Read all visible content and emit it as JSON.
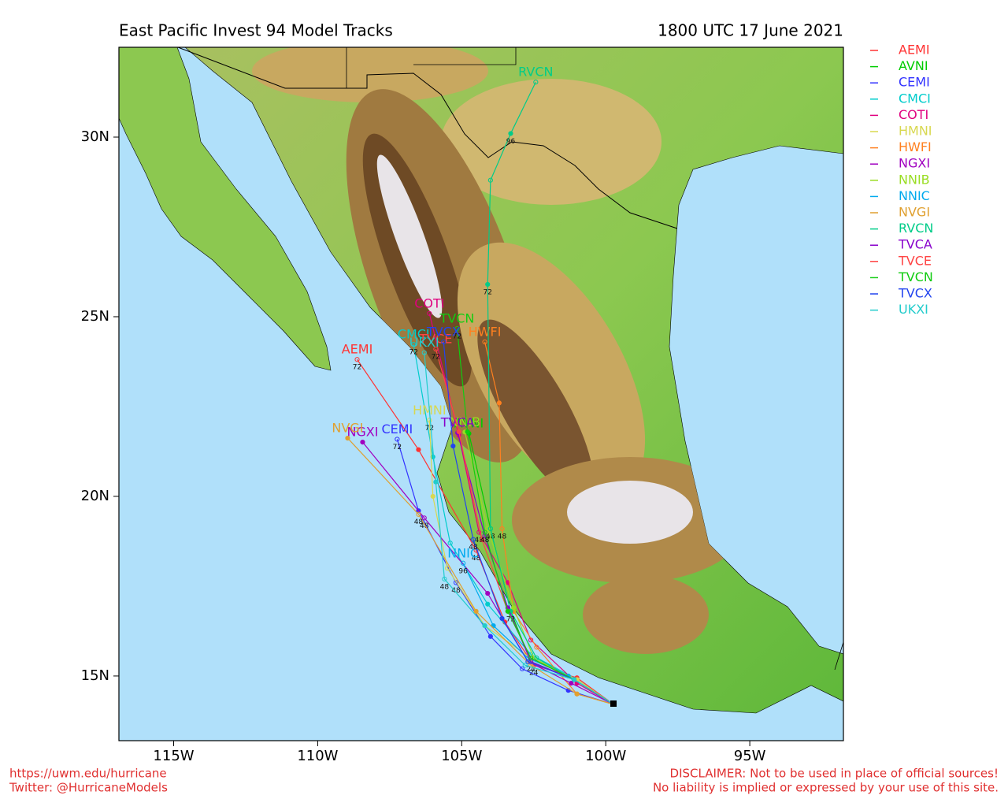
{
  "chart_data": {
    "type": "track_map",
    "title": "East Pacific Invest 94 Model Tracks",
    "subtitle": "1800 UTC 17 June 2021",
    "xlim": [
      -116.9,
      -91.75
    ],
    "ylim": [
      13.2,
      32.5
    ],
    "xticks": [
      {
        "value": -115,
        "label": "115W"
      },
      {
        "value": -110,
        "label": "110W"
      },
      {
        "value": -105,
        "label": "105W"
      },
      {
        "value": -100,
        "label": "100W"
      },
      {
        "value": -95,
        "label": "95W"
      }
    ],
    "yticks": [
      {
        "value": 15,
        "label": "15N"
      },
      {
        "value": 20,
        "label": "20N"
      },
      {
        "value": 25,
        "label": "25N"
      },
      {
        "value": 30,
        "label": "30N"
      }
    ],
    "series": [
      {
        "name": "AEMI",
        "color": "#ff3333",
        "points": [
          [
            -99.73,
            14.21
          ],
          [
            -101.0,
            14.95
          ],
          [
            -102.5,
            15.3
          ],
          [
            -103.5,
            16.5
          ],
          [
            -104.5,
            18.5
          ],
          [
            -106.5,
            21.3
          ],
          [
            -108.63,
            23.81
          ]
        ],
        "hours": [
          null,
          null,
          24,
          null,
          48,
          null,
          72
        ]
      },
      {
        "name": "AVNI",
        "color": "#00cc00",
        "points": [
          [
            -99.73,
            14.21
          ],
          [
            -101.1,
            14.9
          ],
          [
            -102.6,
            15.4
          ],
          [
            -103.3,
            16.8
          ],
          [
            -104.0,
            19.1
          ],
          [
            -104.75,
            21.75
          ]
        ],
        "hours": [
          null,
          null,
          24,
          null,
          48,
          null
        ]
      },
      {
        "name": "CEMI",
        "color": "#3333ff",
        "points": [
          [
            -99.73,
            14.21
          ],
          [
            -101.3,
            14.6
          ],
          [
            -102.9,
            15.2
          ],
          [
            -104.0,
            16.1
          ],
          [
            -105.2,
            17.6
          ],
          [
            -106.5,
            19.6
          ],
          [
            -107.24,
            21.59
          ]
        ],
        "hours": [
          null,
          null,
          null,
          null,
          48,
          null,
          72
        ]
      },
      {
        "name": "CMCI",
        "color": "#00cccc",
        "points": [
          [
            -99.73,
            14.21
          ],
          [
            -101.0,
            14.9
          ],
          [
            -102.6,
            15.6
          ],
          [
            -104.1,
            17.0
          ],
          [
            -105.4,
            18.7
          ],
          [
            -106.0,
            21.1
          ],
          [
            -106.67,
            24.23
          ]
        ],
        "hours": [
          null,
          null,
          null,
          null,
          null,
          null,
          72
        ]
      },
      {
        "name": "COTI",
        "color": "#e0007f",
        "points": [
          [
            -99.73,
            14.21
          ],
          [
            -101.0,
            14.8
          ],
          [
            -102.6,
            16.0
          ],
          [
            -103.4,
            17.6
          ],
          [
            -104.4,
            19.0
          ],
          [
            -105.1,
            21.7
          ],
          [
            -106.12,
            25.09
          ]
        ],
        "hours": [
          null,
          null,
          null,
          null,
          48,
          null,
          null
        ]
      },
      {
        "name": "HMNI",
        "color": "#d8d850",
        "points": [
          [
            -99.73,
            14.21
          ],
          [
            -101.0,
            14.9
          ],
          [
            -102.6,
            15.5
          ],
          [
            -104.2,
            16.4
          ],
          [
            -105.5,
            18.0
          ],
          [
            -106.0,
            20.0
          ],
          [
            -106.12,
            22.12
          ]
        ],
        "hours": [
          null,
          null,
          null,
          null,
          null,
          null,
          72
        ]
      },
      {
        "name": "HWFI",
        "color": "#ff8020",
        "points": [
          [
            -99.73,
            14.21
          ],
          [
            -101.0,
            14.5
          ],
          [
            -102.4,
            15.8
          ],
          [
            -103.2,
            16.8
          ],
          [
            -103.6,
            19.1
          ],
          [
            -103.7,
            22.6
          ],
          [
            -104.2,
            24.3
          ]
        ],
        "hours": [
          null,
          null,
          null,
          null,
          48,
          null,
          null
        ]
      },
      {
        "name": "NGXI",
        "color": "#a000c0",
        "points": [
          [
            -99.73,
            14.21
          ],
          [
            -101.2,
            14.8
          ],
          [
            -102.7,
            15.4
          ],
          [
            -104.1,
            17.3
          ],
          [
            -106.3,
            19.4
          ],
          [
            -108.44,
            21.51
          ]
        ],
        "hours": [
          null,
          null,
          null,
          null,
          48,
          null
        ]
      },
      {
        "name": "NNIB",
        "color": "#99dd22",
        "points": [
          [
            -99.73,
            14.21
          ],
          [
            -101.1,
            14.9
          ],
          [
            -102.5,
            15.5
          ],
          [
            -103.2,
            16.9
          ],
          [
            -104.1,
            19.1
          ],
          [
            -104.89,
            21.79
          ]
        ],
        "hours": [
          null,
          null,
          null,
          null,
          null,
          null
        ]
      },
      {
        "name": "NNIC",
        "color": "#00aaee",
        "points": [
          [
            -99.73,
            14.21
          ],
          [
            -101.3,
            15.0
          ],
          [
            -102.7,
            15.5
          ],
          [
            -103.9,
            16.4
          ],
          [
            -104.95,
            18.14
          ]
        ],
        "hours": [
          null,
          null,
          null,
          null,
          96
        ]
      },
      {
        "name": "NVGI",
        "color": "#e0a030",
        "points": [
          [
            -99.73,
            14.21
          ],
          [
            -101.0,
            14.5
          ],
          [
            -102.6,
            15.3
          ],
          [
            -104.5,
            16.8
          ],
          [
            -106.5,
            19.5
          ],
          [
            -108.96,
            21.62
          ]
        ],
        "hours": [
          null,
          null,
          null,
          null,
          48,
          null
        ]
      },
      {
        "name": "RVCN",
        "color": "#00cc88",
        "points": [
          [
            -99.73,
            14.21
          ],
          [
            -101.1,
            14.9
          ],
          [
            -102.4,
            15.5
          ],
          [
            -103.3,
            16.8
          ],
          [
            -104.0,
            19.1
          ],
          [
            -104.1,
            25.9
          ],
          [
            -104.0,
            28.8
          ],
          [
            -103.3,
            30.1
          ],
          [
            -102.43,
            31.53
          ]
        ],
        "hours": [
          null,
          null,
          null,
          72,
          null,
          72,
          null,
          96,
          null
        ]
      },
      {
        "name": "TVCA",
        "color": "#8800cc",
        "points": [
          [
            -99.73,
            14.21
          ],
          [
            -101.1,
            14.9
          ],
          [
            -102.6,
            15.4
          ],
          [
            -103.4,
            16.9
          ],
          [
            -104.2,
            18.9
          ],
          [
            -105.14,
            21.77
          ]
        ],
        "hours": [
          null,
          null,
          null,
          null,
          null,
          null
        ]
      },
      {
        "name": "TVCE",
        "color": "#ff4444",
        "points": [
          [
            -99.73,
            14.21
          ],
          [
            -101.1,
            14.9
          ],
          [
            -102.6,
            15.5
          ],
          [
            -103.4,
            16.8
          ],
          [
            -104.3,
            18.8
          ],
          [
            -105.1,
            21.8
          ],
          [
            -105.9,
            24.1
          ]
        ],
        "hours": [
          null,
          null,
          null,
          null,
          null,
          null,
          72
        ]
      },
      {
        "name": "TVCN",
        "color": "#11cc11",
        "points": [
          [
            -99.73,
            14.21
          ],
          [
            -101.1,
            14.9
          ],
          [
            -102.6,
            15.5
          ],
          [
            -103.4,
            16.8
          ],
          [
            -104.2,
            19.0
          ],
          [
            -104.8,
            21.8
          ],
          [
            -105.16,
            24.67
          ]
        ],
        "hours": [
          null,
          null,
          null,
          null,
          48,
          null,
          72
        ]
      },
      {
        "name": "TVCX",
        "color": "#2244ee",
        "points": [
          [
            -99.73,
            14.21
          ],
          [
            -101.1,
            14.9
          ],
          [
            -102.7,
            15.4
          ],
          [
            -103.6,
            16.6
          ],
          [
            -104.6,
            18.8
          ],
          [
            -105.3,
            21.4
          ],
          [
            -105.63,
            24.3
          ]
        ],
        "hours": [
          null,
          null,
          null,
          null,
          48,
          null,
          null
        ]
      },
      {
        "name": "UKXI",
        "color": "#22cccc",
        "points": [
          [
            -99.73,
            14.21
          ],
          [
            -101.1,
            14.9
          ],
          [
            -102.8,
            15.3
          ],
          [
            -104.2,
            16.4
          ],
          [
            -105.6,
            17.7
          ],
          [
            -105.9,
            20.4
          ],
          [
            -106.3,
            24.0
          ]
        ],
        "hours": [
          null,
          null,
          null,
          null,
          48,
          null,
          null
        ]
      }
    ],
    "footer_left": [
      "https://uwm.edu/hurricane",
      "Twitter: @HurricaneModels"
    ],
    "footer_right": [
      "DISCLAIMER: Not to be used in place of official sources!",
      "No liability is implied or expressed by your use of this site."
    ]
  }
}
